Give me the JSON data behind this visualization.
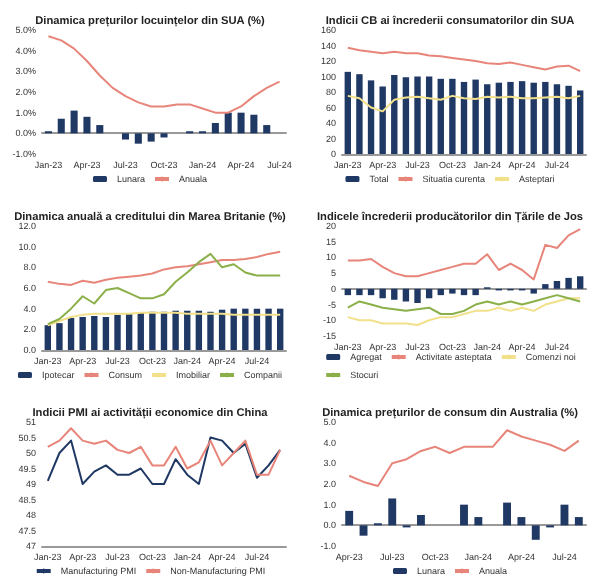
{
  "chart_data": [
    {
      "type": "bar",
      "title": "Dinamica prețurilor locuințelor din SUA (%)",
      "categories": [
        "Jan-23",
        null,
        null,
        "Apr-23",
        null,
        null,
        "Jul-23",
        null,
        null,
        "Oct-23",
        null,
        null,
        "Jan-24",
        null,
        null,
        "Apr-24",
        null,
        null,
        "Jul-24"
      ],
      "ylim": [
        -1,
        5
      ],
      "yticks": [
        {
          "value": -1,
          "label": "-1.0%"
        },
        {
          "value": 0,
          "label": "0.0%"
        },
        {
          "value": 1,
          "label": "1.0%"
        },
        {
          "value": 2,
          "label": "2.0%"
        },
        {
          "value": 3,
          "label": "3.0%"
        },
        {
          "value": 4,
          "label": "4.0%"
        },
        {
          "value": 5,
          "label": "5.0%"
        }
      ],
      "legend": "bottom",
      "marker": "none",
      "line_style": "solid",
      "series": [
        {
          "name": "Lunara",
          "type": "bar",
          "color": "#1f3864",
          "values": [
            0.1,
            0.7,
            1.1,
            0.8,
            0.4,
            0.0,
            -0.3,
            -0.5,
            -0.4,
            -0.2,
            0.0,
            0.1,
            0.1,
            0.5,
            1.0,
            1.0,
            0.9,
            0.4,
            0.0
          ]
        },
        {
          "name": "Anuala",
          "type": "line",
          "color": "#e8857a",
          "values": [
            4.7,
            4.5,
            4.1,
            3.5,
            2.8,
            2.2,
            1.8,
            1.5,
            1.3,
            1.3,
            1.4,
            1.4,
            1.2,
            1.0,
            1.0,
            1.3,
            1.8,
            2.2,
            2.5
          ]
        }
      ]
    },
    {
      "type": "bar",
      "title": "Indicii CB ai încrederii consumatorilor din SUA",
      "categories": [
        "Jan-23",
        null,
        null,
        "Apr-23",
        null,
        null,
        "Jul-23",
        null,
        null,
        "Oct-23",
        null,
        null,
        "Jan-24",
        null,
        null,
        "Apr-24",
        null,
        null,
        "Jul-24",
        null,
        null
      ],
      "ylim": [
        0,
        160
      ],
      "yticks": [
        0,
        20,
        40,
        60,
        80,
        100,
        120,
        140,
        160
      ],
      "legend": "bottom",
      "marker": "none",
      "line_style": "solid",
      "series": [
        {
          "name": "Total",
          "type": "bar",
          "color": "#1f3864",
          "values": [
            106,
            103,
            95,
            87,
            102,
            99,
            100,
            100,
            97,
            97,
            93,
            96,
            90,
            92,
            93,
            94,
            92,
            93,
            90,
            88,
            82
          ]
        },
        {
          "name": "Situatia curenta",
          "type": "line",
          "color": "#e8857a",
          "values": [
            137,
            134,
            132,
            130,
            132,
            130,
            130,
            127,
            126,
            124,
            122,
            120,
            117,
            116,
            118,
            115,
            112,
            109,
            113,
            114,
            107
          ]
        },
        {
          "name": "Asteptari",
          "type": "line",
          "color": "#f2e08a",
          "values": [
            75,
            72,
            60,
            55,
            70,
            73,
            74,
            72,
            70,
            75,
            72,
            71,
            74,
            73,
            74,
            72,
            72,
            73,
            74,
            72,
            75
          ]
        }
      ]
    },
    {
      "type": "bar",
      "title": "Dinamica anuală a creditului din Marea Britanie (%)",
      "categories": [
        "Jan-23",
        null,
        null,
        "Apr-23",
        null,
        null,
        "Jul-23",
        null,
        null,
        "Oct-23",
        null,
        null,
        "Jan-24",
        null,
        null,
        "Apr-24",
        null,
        null,
        "Jul-24",
        null,
        null
      ],
      "ylim": [
        0,
        12
      ],
      "yticks": [
        {
          "value": 0,
          "label": "0.0"
        },
        {
          "value": 2,
          "label": "2.0"
        },
        {
          "value": 4,
          "label": "4.0"
        },
        {
          "value": 6,
          "label": "6.0"
        },
        {
          "value": 8,
          "label": "8.0"
        },
        {
          "value": 10,
          "label": "10.0"
        },
        {
          "value": 12,
          "label": "12.0"
        }
      ],
      "legend": "bottom",
      "marker": "none",
      "line_style": "solid",
      "series": [
        {
          "name": "Ipotecar",
          "type": "bar",
          "color": "#1f3864",
          "values": [
            2.4,
            2.6,
            3.1,
            3.2,
            3.3,
            3.2,
            3.4,
            3.5,
            3.6,
            3.7,
            3.7,
            3.8,
            3.8,
            3.8,
            3.7,
            3.9,
            4.0,
            4.0,
            4.0,
            4.0,
            4.0
          ]
        },
        {
          "name": "Consum",
          "type": "line",
          "color": "#e8857a",
          "values": [
            6.6,
            6.4,
            6.3,
            6.7,
            6.5,
            6.8,
            7.0,
            7.1,
            7.2,
            7.4,
            7.8,
            8.0,
            8.1,
            8.3,
            8.5,
            8.7,
            8.7,
            8.8,
            9.0,
            9.3,
            9.5
          ]
        },
        {
          "name": "Imobiliar",
          "type": "line",
          "color": "#f2e08a",
          "values": [
            2.4,
            2.8,
            3.2,
            3.4,
            3.5,
            3.5,
            3.5,
            3.5,
            3.6,
            3.6,
            3.6,
            3.6,
            3.5,
            3.5,
            3.5,
            3.5,
            3.4,
            3.4,
            3.4,
            3.4,
            3.4
          ]
        },
        {
          "name": "Companii",
          "type": "line",
          "color": "#8bb04a",
          "values": [
            2.5,
            3.0,
            4.0,
            5.2,
            4.5,
            5.8,
            6.0,
            5.5,
            5.0,
            5.0,
            5.4,
            6.6,
            7.5,
            8.5,
            9.3,
            8.0,
            8.3,
            7.5,
            7.2,
            7.2,
            7.2
          ]
        }
      ]
    },
    {
      "type": "bar",
      "title": "Indicele încrederii producătorilor din Țările de Jos",
      "categories": [
        "Jan-23",
        null,
        null,
        "Apr-23",
        null,
        null,
        "Jul-23",
        null,
        null,
        "Oct-23",
        null,
        null,
        "Jan-24",
        null,
        null,
        "Apr-24",
        null,
        null,
        "Jul-24",
        null,
        null
      ],
      "ylim": [
        -15,
        20
      ],
      "yticks": [
        -15,
        -10,
        -5,
        0,
        5,
        10,
        15,
        20
      ],
      "legend": "bottom",
      "marker": "none",
      "line_style": "solid",
      "series": [
        {
          "name": "Agregat",
          "type": "bar",
          "color": "#1f3864",
          "values": [
            -2,
            -2,
            -2,
            -3,
            -3.5,
            -4,
            -4.5,
            -3,
            -2,
            -1.5,
            -2,
            -2,
            0.5,
            -0.5,
            -0.5,
            -0.5,
            -1.5,
            1.5,
            2.5,
            3.5,
            4
          ]
        },
        {
          "name": "Activitate asteptata",
          "type": "line",
          "color": "#e8857a",
          "values": [
            9,
            9,
            9.5,
            7,
            5,
            4,
            4,
            5,
            6,
            7,
            8,
            8,
            11,
            6,
            8,
            6,
            3,
            14,
            13,
            17,
            19
          ]
        },
        {
          "name": "Comenzi noi",
          "type": "line",
          "color": "#f2e08a",
          "values": [
            -9,
            -10,
            -10,
            -11,
            -11,
            -11,
            -11.5,
            -10,
            -9,
            -9,
            -8,
            -7,
            -7,
            -6,
            -7,
            -6,
            -7,
            -5,
            -4,
            -3,
            -3
          ]
        },
        {
          "name": "Stocuri",
          "type": "line",
          "color": "#8bb04a",
          "values": [
            -6,
            -4,
            -5,
            -6,
            -6.5,
            -7,
            -6.5,
            -6,
            -8,
            -8,
            -7,
            -5,
            -4,
            -5,
            -4,
            -5,
            -4,
            -3,
            -2,
            -3,
            -4
          ]
        }
      ]
    },
    {
      "type": "line",
      "title": "Indicii PMI ai activității economice din China",
      "categories": [
        "Jan-23",
        null,
        null,
        "Apr-23",
        null,
        null,
        "Jul-23",
        null,
        null,
        "Oct-23",
        null,
        null,
        "Jan-24",
        null,
        null,
        "Apr-24",
        null,
        null,
        "Jul-24",
        null,
        null
      ],
      "ylim": [
        47,
        51
      ],
      "yticks": [
        47,
        47.5,
        48,
        48.5,
        49,
        49.5,
        50,
        50.5,
        51
      ],
      "legend": "bottom",
      "marker": "none",
      "line_style": "solid",
      "series": [
        {
          "name": "Manufacturing PMI",
          "color": "#1f3864",
          "values": [
            49.1,
            50.0,
            50.4,
            49.0,
            49.4,
            49.6,
            49.3,
            49.3,
            49.5,
            49.0,
            49.0,
            49.8,
            49.3,
            49.0,
            50.5,
            50.4,
            50.0,
            50.3,
            49.2,
            49.6,
            50.1
          ]
        },
        {
          "name": "Non-Manufacturing PMI",
          "color": "#e8857a",
          "values": [
            50.2,
            50.4,
            50.8,
            50.4,
            50.3,
            50.4,
            50.1,
            50.0,
            50.2,
            49.6,
            49.6,
            50.2,
            49.5,
            49.7,
            50.4,
            49.6,
            50.0,
            50.4,
            49.3,
            49.3,
            50.1
          ]
        }
      ]
    },
    {
      "type": "bar",
      "title": "Dinamica prețurilor de consum din Australia (%)",
      "categories": [
        "Apr-23",
        null,
        null,
        "Jul-23",
        null,
        null,
        "Oct-23",
        null,
        null,
        "Jan-24",
        null,
        null,
        "Apr-24",
        null,
        null,
        "Jul-24",
        null
      ],
      "ylim": [
        -1,
        5
      ],
      "yticks": [
        {
          "value": -1,
          "label": "-1.0"
        },
        {
          "value": 0,
          "label": "0.0"
        },
        {
          "value": 1,
          "label": "1.0"
        },
        {
          "value": 2,
          "label": "2.0"
        },
        {
          "value": 3,
          "label": "3.0"
        },
        {
          "value": 4,
          "label": "4.0"
        },
        {
          "value": 5,
          "label": "5.0"
        }
      ],
      "legend": "bottom",
      "marker": "none",
      "line_style": "solid",
      "series": [
        {
          "name": "Lunara",
          "type": "bar",
          "color": "#1f3864",
          "values": [
            0.7,
            -0.5,
            0.1,
            1.3,
            -0.1,
            0.5,
            null,
            null,
            1.0,
            0.4,
            null,
            1.1,
            0.4,
            -0.7,
            -0.1,
            1.0,
            0.4
          ]
        },
        {
          "name": "Anuala",
          "type": "line",
          "color": "#e8857a",
          "values": [
            2.4,
            2.1,
            1.9,
            3.0,
            3.2,
            3.6,
            3.8,
            3.5,
            3.8,
            3.8,
            3.8,
            4.6,
            4.3,
            4.1,
            3.9,
            3.6,
            4.1
          ]
        }
      ]
    }
  ]
}
